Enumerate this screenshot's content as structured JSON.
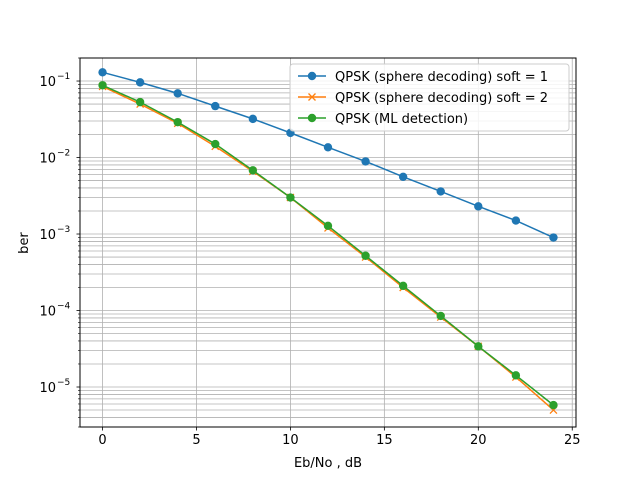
{
  "chart_data": {
    "type": "line",
    "title": "",
    "xlabel": "Eb/No , dB",
    "ylabel": "ber",
    "yscale": "log",
    "xlim": [
      -1.2,
      25.2
    ],
    "ylim": [
      3e-06,
      0.2
    ],
    "xticks": [
      0,
      5,
      10,
      15,
      20,
      25
    ],
    "xtick_labels": [
      "0",
      "5",
      "10",
      "15",
      "20",
      "25"
    ],
    "yticks": [
      1e-05,
      0.0001,
      0.001,
      0.01,
      0.1
    ],
    "ytick_labels": [
      {
        "base": "10",
        "exp": "−5"
      },
      {
        "base": "10",
        "exp": "−4"
      },
      {
        "base": "10",
        "exp": "−3"
      },
      {
        "base": "10",
        "exp": "−2"
      },
      {
        "base": "10",
        "exp": "−1"
      }
    ],
    "grid": "on",
    "legend_position": "upper-right",
    "x": [
      0,
      2,
      4,
      6,
      8,
      10,
      12,
      14,
      16,
      18,
      20,
      22,
      24
    ],
    "series": [
      {
        "name": "QPSK (sphere decoding) soft = 1",
        "color": "#1f77b4",
        "marker": "circle",
        "values": [
          0.13,
          0.096,
          0.069,
          0.047,
          0.032,
          0.021,
          0.0136,
          0.0089,
          0.0056,
          0.0036,
          0.0023,
          0.0015,
          0.0009
        ]
      },
      {
        "name": "QPSK (sphere decoding) soft = 2",
        "color": "#ff7f0e",
        "marker": "x",
        "values": [
          0.085,
          0.05,
          0.028,
          0.014,
          0.0066,
          0.003,
          0.0012,
          0.0005,
          0.0002,
          8.2e-05,
          3.4e-05,
          1.35e-05,
          5e-06
        ]
      },
      {
        "name": "QPSK (ML detection)",
        "color": "#2ca02c",
        "marker": "circle",
        "values": [
          0.088,
          0.053,
          0.029,
          0.015,
          0.0068,
          0.003,
          0.00128,
          0.00052,
          0.00021,
          8.5e-05,
          3.4e-05,
          1.42e-05,
          5.8e-06
        ]
      }
    ]
  }
}
